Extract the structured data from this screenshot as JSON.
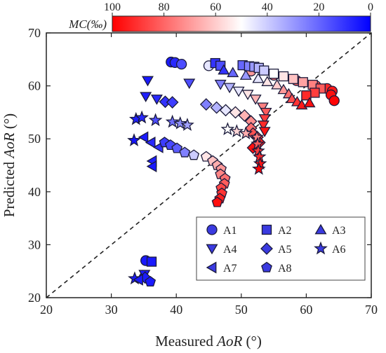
{
  "chart_data": {
    "type": "scatter",
    "title": "",
    "xlabel_prefix": "Measured ",
    "xlabel_var": "AoR",
    "xlabel_suffix": " (°)",
    "ylabel_prefix": "Predicted ",
    "ylabel_var": "AoR",
    "ylabel_suffix": " (°)",
    "xlim": [
      20,
      70
    ],
    "ylim": [
      20,
      70
    ],
    "xticks": [
      "20",
      "30",
      "40",
      "50",
      "60",
      "70"
    ],
    "yticks": [
      "20",
      "30",
      "40",
      "50",
      "60",
      "70"
    ],
    "reference_line": "y = x (dashed)",
    "colorbar": {
      "title": "MC(‰)",
      "ticks": [
        "100",
        "80",
        "60",
        "40",
        "20",
        "0"
      ],
      "range": [
        100,
        0
      ],
      "colors": [
        "#ff0000",
        "#ffffff",
        "#0000ff"
      ]
    },
    "legend": {
      "position": "bottom-right",
      "entries": [
        {
          "name": "A1",
          "marker": "circle"
        },
        {
          "name": "A2",
          "marker": "square"
        },
        {
          "name": "A3",
          "marker": "triangle-up"
        },
        {
          "name": "A4",
          "marker": "triangle-down"
        },
        {
          "name": "A5",
          "marker": "diamond"
        },
        {
          "name": "A6",
          "marker": "star"
        },
        {
          "name": "A7",
          "marker": "triangle-left"
        },
        {
          "name": "A8",
          "marker": "pentagon"
        }
      ]
    },
    "series": [
      {
        "name": "A1",
        "marker": "circle",
        "points": [
          {
            "x": 35.3,
            "y": 27.0,
            "mc": 5
          },
          {
            "x": 39.2,
            "y": 64.5,
            "mc": 5
          },
          {
            "x": 39.8,
            "y": 64.4,
            "mc": 8
          },
          {
            "x": 40.8,
            "y": 64.1,
            "mc": 15
          },
          {
            "x": 45.0,
            "y": 63.8,
            "mc": 45
          },
          {
            "x": 51.5,
            "y": 62.8,
            "mc": 70
          },
          {
            "x": 55.0,
            "y": 62.0,
            "mc": 75
          },
          {
            "x": 58.5,
            "y": 61.0,
            "mc": 80
          },
          {
            "x": 61.5,
            "y": 60.0,
            "mc": 86
          },
          {
            "x": 63.2,
            "y": 59.5,
            "mc": 92
          },
          {
            "x": 64.0,
            "y": 59.0,
            "mc": 95
          },
          {
            "x": 63.8,
            "y": 58.3,
            "mc": 97
          },
          {
            "x": 64.3,
            "y": 57.2,
            "mc": 99
          }
        ]
      },
      {
        "name": "A2",
        "marker": "square",
        "points": [
          {
            "x": 36.2,
            "y": 26.8,
            "mc": 5
          },
          {
            "x": 46.0,
            "y": 64.3,
            "mc": 10
          },
          {
            "x": 46.8,
            "y": 63.8,
            "mc": 15
          },
          {
            "x": 50.2,
            "y": 63.9,
            "mc": 20
          },
          {
            "x": 51.2,
            "y": 63.7,
            "mc": 25
          },
          {
            "x": 52.0,
            "y": 63.6,
            "mc": 30
          },
          {
            "x": 52.7,
            "y": 63.4,
            "mc": 35
          },
          {
            "x": 53.5,
            "y": 62.9,
            "mc": 40
          },
          {
            "x": 55.0,
            "y": 62.3,
            "mc": 50
          },
          {
            "x": 56.5,
            "y": 61.8,
            "mc": 55
          },
          {
            "x": 58.0,
            "y": 61.3,
            "mc": 62
          },
          {
            "x": 59.5,
            "y": 60.7,
            "mc": 68
          },
          {
            "x": 61.0,
            "y": 60.2,
            "mc": 75
          },
          {
            "x": 62.2,
            "y": 59.5,
            "mc": 82
          },
          {
            "x": 61.3,
            "y": 58.7,
            "mc": 88
          },
          {
            "x": 60.0,
            "y": 58.2,
            "mc": 92
          }
        ]
      },
      {
        "name": "A3",
        "marker": "triangle-up",
        "points": [
          {
            "x": 34.8,
            "y": 24.2,
            "mc": 5
          },
          {
            "x": 47.3,
            "y": 63.0,
            "mc": 10
          },
          {
            "x": 48.7,
            "y": 62.5,
            "mc": 20
          },
          {
            "x": 50.7,
            "y": 62.0,
            "mc": 30
          },
          {
            "x": 52.6,
            "y": 61.4,
            "mc": 45
          },
          {
            "x": 54.0,
            "y": 60.8,
            "mc": 55
          },
          {
            "x": 55.5,
            "y": 60.2,
            "mc": 60
          },
          {
            "x": 56.5,
            "y": 59.3,
            "mc": 70
          },
          {
            "x": 57.3,
            "y": 58.5,
            "mc": 78
          },
          {
            "x": 57.8,
            "y": 57.6,
            "mc": 85
          },
          {
            "x": 58.6,
            "y": 57.0,
            "mc": 90
          },
          {
            "x": 59.3,
            "y": 56.4,
            "mc": 95
          },
          {
            "x": 60.5,
            "y": 56.8,
            "mc": 97
          }
        ]
      },
      {
        "name": "A4",
        "marker": "triangle-down",
        "points": [
          {
            "x": 35.1,
            "y": 24.4,
            "mc": 5
          },
          {
            "x": 35.6,
            "y": 61.0,
            "mc": 5
          },
          {
            "x": 35.3,
            "y": 58.0,
            "mc": 6
          },
          {
            "x": 37.0,
            "y": 57.5,
            "mc": 8
          },
          {
            "x": 42.0,
            "y": 60.5,
            "mc": 15
          },
          {
            "x": 46.8,
            "y": 60.3,
            "mc": 25
          },
          {
            "x": 48.2,
            "y": 59.7,
            "mc": 35
          },
          {
            "x": 49.6,
            "y": 59.0,
            "mc": 45
          },
          {
            "x": 51.0,
            "y": 58.4,
            "mc": 55
          },
          {
            "x": 52.2,
            "y": 57.5,
            "mc": 65
          },
          {
            "x": 53.3,
            "y": 56.0,
            "mc": 75
          },
          {
            "x": 53.8,
            "y": 55.0,
            "mc": 82
          },
          {
            "x": 53.6,
            "y": 53.8,
            "mc": 88
          },
          {
            "x": 53.4,
            "y": 52.6,
            "mc": 92
          },
          {
            "x": 53.6,
            "y": 51.4,
            "mc": 96
          }
        ]
      },
      {
        "name": "A5",
        "marker": "diamond",
        "points": [
          {
            "x": 35.2,
            "y": 23.8,
            "mc": 5
          },
          {
            "x": 38.3,
            "y": 57.0,
            "mc": 10
          },
          {
            "x": 39.4,
            "y": 56.9,
            "mc": 12
          },
          {
            "x": 44.6,
            "y": 56.5,
            "mc": 25
          },
          {
            "x": 46.2,
            "y": 55.9,
            "mc": 35
          },
          {
            "x": 47.6,
            "y": 55.4,
            "mc": 45
          },
          {
            "x": 49.1,
            "y": 55.0,
            "mc": 55
          },
          {
            "x": 50.5,
            "y": 54.4,
            "mc": 65
          },
          {
            "x": 51.5,
            "y": 53.3,
            "mc": 72
          },
          {
            "x": 51.5,
            "y": 52.0,
            "mc": 78
          },
          {
            "x": 51.8,
            "y": 51.0,
            "mc": 84
          },
          {
            "x": 52.5,
            "y": 50.3,
            "mc": 88
          },
          {
            "x": 52.8,
            "y": 49.3,
            "mc": 93
          },
          {
            "x": 51.8,
            "y": 48.3,
            "mc": 97
          }
        ]
      },
      {
        "name": "A6",
        "marker": "star",
        "points": [
          {
            "x": 33.6,
            "y": 23.6,
            "mc": 5
          },
          {
            "x": 33.5,
            "y": 49.7,
            "mc": 4
          },
          {
            "x": 33.8,
            "y": 53.7,
            "mc": 6
          },
          {
            "x": 34.7,
            "y": 54.0,
            "mc": 8
          },
          {
            "x": 36.8,
            "y": 53.5,
            "mc": 15
          },
          {
            "x": 39.4,
            "y": 53.2,
            "mc": 22
          },
          {
            "x": 40.6,
            "y": 52.9,
            "mc": 28
          },
          {
            "x": 41.7,
            "y": 52.6,
            "mc": 32
          },
          {
            "x": 47.9,
            "y": 51.8,
            "mc": 50
          },
          {
            "x": 49.3,
            "y": 51.4,
            "mc": 58
          },
          {
            "x": 50.7,
            "y": 51.0,
            "mc": 66
          },
          {
            "x": 52.4,
            "y": 50.3,
            "mc": 75
          },
          {
            "x": 52.5,
            "y": 49.0,
            "mc": 82
          },
          {
            "x": 52.6,
            "y": 47.7,
            "mc": 88
          },
          {
            "x": 52.8,
            "y": 46.6,
            "mc": 92
          },
          {
            "x": 52.9,
            "y": 45.3,
            "mc": 96
          },
          {
            "x": 52.7,
            "y": 44.3,
            "mc": 99
          }
        ]
      },
      {
        "name": "A7",
        "marker": "triangle-left",
        "points": [
          {
            "x": 34.2,
            "y": 23.4,
            "mc": 5
          },
          {
            "x": 35.0,
            "y": 50.3,
            "mc": 5
          },
          {
            "x": 36.1,
            "y": 49.3,
            "mc": 8
          },
          {
            "x": 37.3,
            "y": 48.4,
            "mc": 10
          },
          {
            "x": 36.3,
            "y": 45.8,
            "mc": 6
          },
          {
            "x": 36.3,
            "y": 44.8,
            "mc": 5
          }
        ]
      },
      {
        "name": "A8",
        "marker": "pentagon",
        "points": [
          {
            "x": 36.0,
            "y": 23.0,
            "mc": 5
          },
          {
            "x": 38.2,
            "y": 49.3,
            "mc": 12
          },
          {
            "x": 39.1,
            "y": 48.8,
            "mc": 14
          },
          {
            "x": 40.1,
            "y": 48.2,
            "mc": 18
          },
          {
            "x": 41.3,
            "y": 47.4,
            "mc": 25
          },
          {
            "x": 42.7,
            "y": 46.9,
            "mc": 40
          },
          {
            "x": 44.6,
            "y": 46.6,
            "mc": 55
          },
          {
            "x": 45.6,
            "y": 45.8,
            "mc": 62
          },
          {
            "x": 46.3,
            "y": 45.0,
            "mc": 66
          },
          {
            "x": 46.9,
            "y": 44.3,
            "mc": 70
          },
          {
            "x": 46.8,
            "y": 43.3,
            "mc": 74
          },
          {
            "x": 47.5,
            "y": 42.5,
            "mc": 78
          },
          {
            "x": 47.4,
            "y": 41.5,
            "mc": 82
          },
          {
            "x": 46.9,
            "y": 40.7,
            "mc": 86
          },
          {
            "x": 47.0,
            "y": 39.7,
            "mc": 90
          },
          {
            "x": 46.7,
            "y": 38.7,
            "mc": 94
          },
          {
            "x": 46.3,
            "y": 38.0,
            "mc": 97
          }
        ]
      }
    ]
  }
}
